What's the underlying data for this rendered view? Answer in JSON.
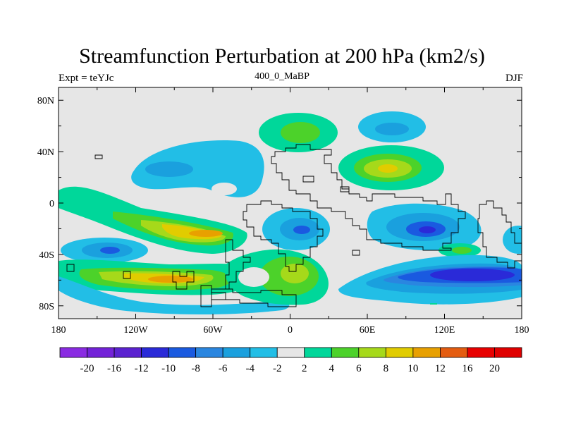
{
  "title": "Streamfunction Perturbation at 200 hPa (km2/s)",
  "left_label": "Expt = teYJc",
  "center_label": "400_0_MaBP",
  "right_label": "DJF",
  "map": {
    "lat_ticks": [
      "80N",
      "40N",
      "0",
      "40S",
      "80S"
    ],
    "lat_values": [
      80,
      40,
      0,
      -40,
      -80
    ],
    "lon_ticks": [
      "180",
      "120W",
      "60W",
      "0",
      "60E",
      "120E",
      "180"
    ],
    "lon_values": [
      -180,
      -120,
      -60,
      0,
      60,
      120,
      180
    ],
    "lat_range": [
      -90,
      90
    ],
    "lon_range": [
      -180,
      180
    ],
    "background_color": "#e6e6e6"
  },
  "colorbar": {
    "labels": [
      "-20",
      "-16",
      "-12",
      "-10",
      "-8",
      "-6",
      "-4",
      "-2",
      "2",
      "4",
      "6",
      "8",
      "10",
      "12",
      "16",
      "20"
    ],
    "colors": [
      "#8a2be2",
      "#7322d8",
      "#5b22d0",
      "#2a2ad8",
      "#1a5ae0",
      "#2a86e0",
      "#1aa0de",
      "#22bee6",
      "#e6e6e6",
      "#00d79a",
      "#4cd22a",
      "#a6d91a",
      "#e1cc00",
      "#e8a000",
      "#e45c10",
      "#e80000",
      "#e00000"
    ]
  }
}
